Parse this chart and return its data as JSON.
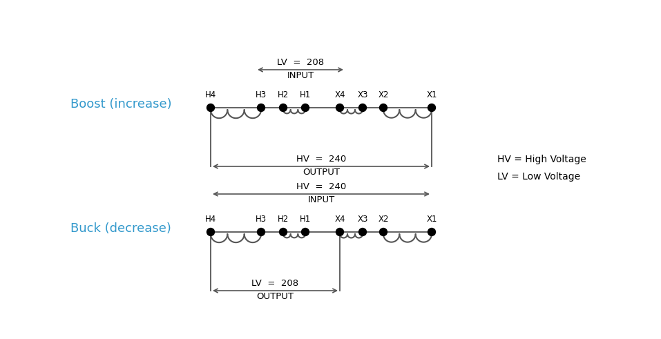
{
  "bg_color": "#ffffff",
  "line_color": "#555555",
  "dot_color": "#000000",
  "label_color": "#000000",
  "boost_label": "Boost (increase)",
  "buck_label": "Buck (decrease)",
  "label_color_blue": "#3399CC",
  "legend_hv": "HV = High Voltage",
  "legend_lv": "LV = Low Voltage",
  "boost_input_label": "LV  =  208",
  "boost_input_sub": "INPUT",
  "boost_output_label": "HV  =  240",
  "boost_output_sub": "OUTPUT",
  "buck_input_label": "HV  =  240",
  "buck_input_sub": "INPUT",
  "buck_output_label": "LV  =  208",
  "buck_output_sub": "OUTPUT",
  "terminal_labels": [
    "H4",
    "H3",
    "H2",
    "H1",
    "X4",
    "X3",
    "X2",
    "X1"
  ],
  "fig_width": 9.57,
  "fig_height": 4.91,
  "dpi": 100
}
